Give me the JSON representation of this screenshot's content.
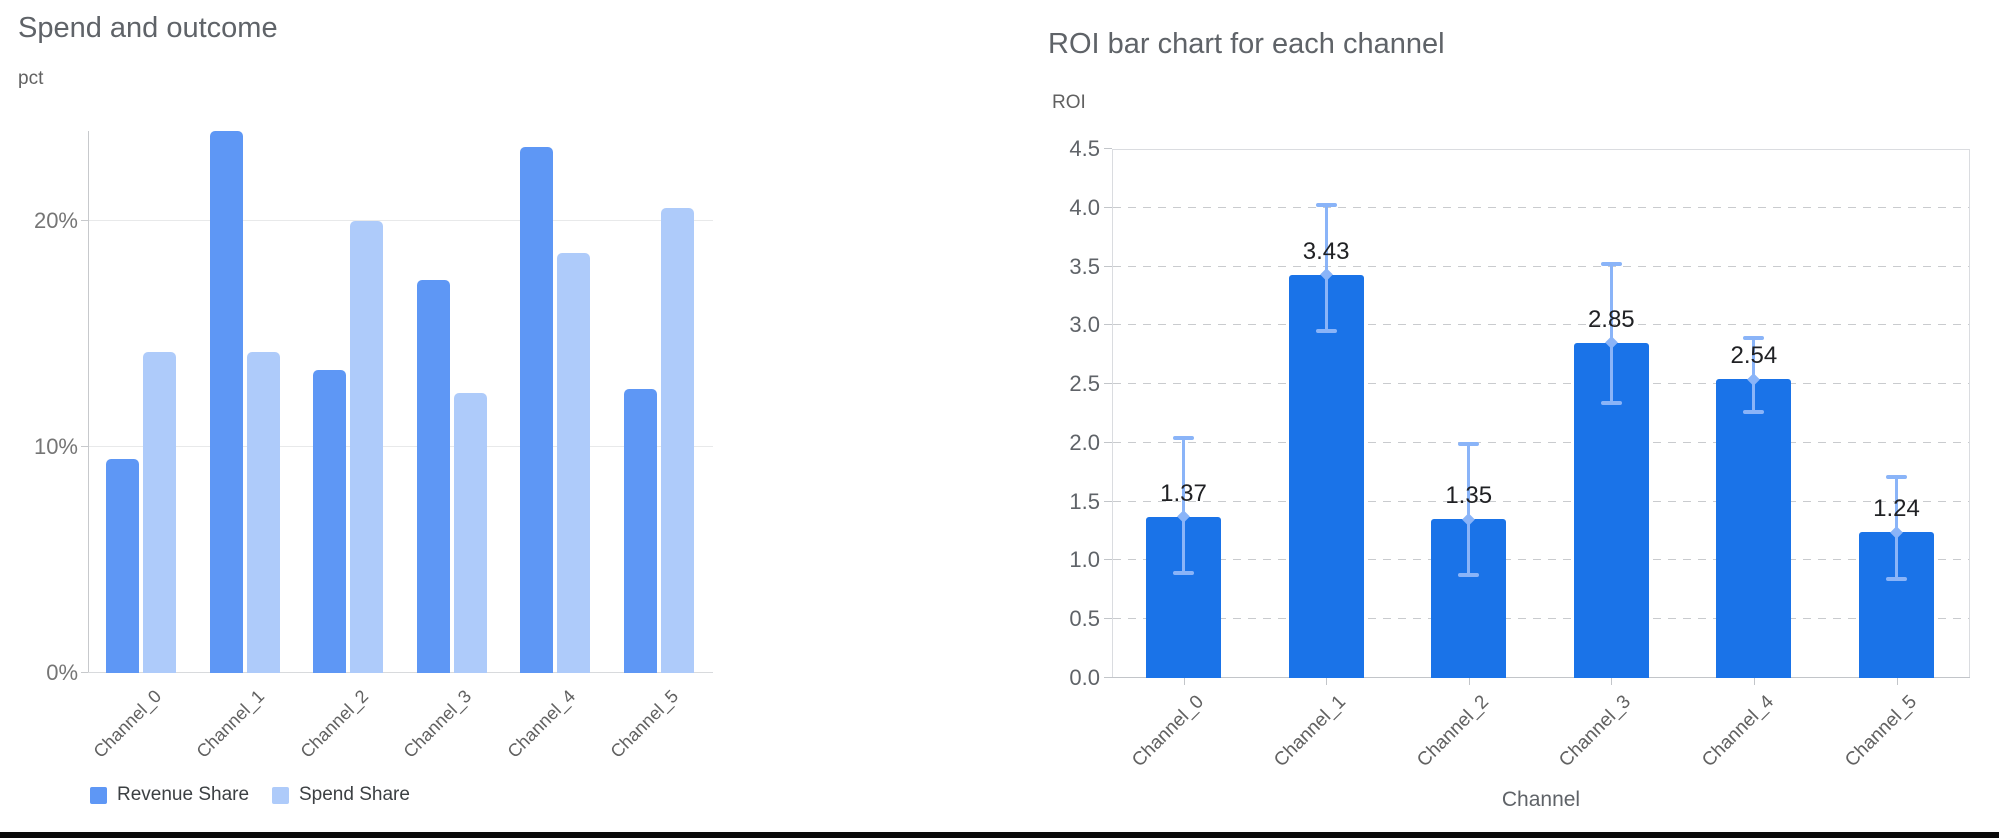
{
  "chart_data": [
    {
      "type": "bar",
      "title": "Spend and outcome",
      "ylabel": "pct",
      "categories": [
        "Channel_0",
        "Channel_1",
        "Channel_2",
        "Channel_3",
        "Channel_4",
        "Channel_5"
      ],
      "series": [
        {
          "name": "Revenue Share",
          "color": "#5E97F5",
          "values": [
            9.5,
            24.0,
            13.4,
            17.4,
            23.3,
            12.6
          ]
        },
        {
          "name": "Spend Share",
          "color": "#AECBFA",
          "values": [
            14.2,
            14.2,
            20.0,
            12.4,
            18.6,
            20.6
          ]
        }
      ],
      "yticks": [
        {
          "value": 0,
          "label": "0%"
        },
        {
          "value": 10,
          "label": "10%"
        },
        {
          "value": 20,
          "label": "20%"
        }
      ],
      "ylim": [
        0,
        24
      ],
      "grid": "solid",
      "legend_position": "bottom"
    },
    {
      "type": "bar",
      "title": "ROI bar chart for each channel",
      "xlabel": "Channel",
      "ylabel": "ROI",
      "categories": [
        "Channel_0",
        "Channel_1",
        "Channel_2",
        "Channel_3",
        "Channel_4",
        "Channel_5"
      ],
      "values": [
        1.37,
        3.43,
        1.35,
        2.85,
        2.54,
        1.24
      ],
      "error_low": [
        0.89,
        2.95,
        0.88,
        2.34,
        2.26,
        0.84
      ],
      "error_high": [
        2.04,
        4.02,
        1.99,
        3.52,
        2.89,
        1.71
      ],
      "bar_color": "#1A73E8",
      "error_color": "#8AB4F8",
      "ylim": [
        0,
        4.5
      ],
      "ytick_step": 0.5,
      "grid": "dashed",
      "legend_position": "none"
    }
  ]
}
